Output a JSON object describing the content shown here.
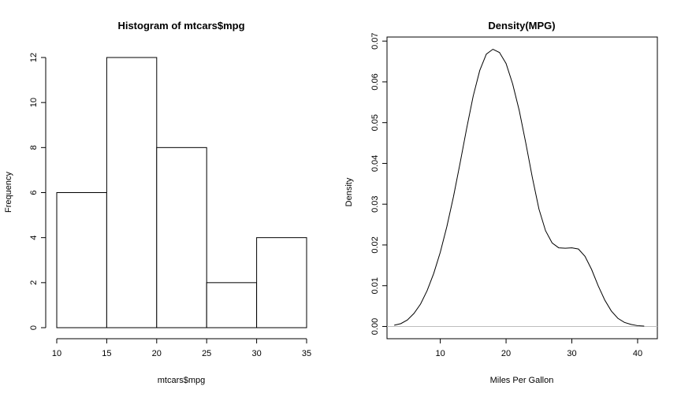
{
  "chart_data": [
    {
      "type": "bar",
      "title": "Histogram of mtcars$mpg",
      "xlabel": "mtcars$mpg",
      "ylabel": "Frequency",
      "bins": [
        {
          "from": 10,
          "to": 15,
          "count": 6
        },
        {
          "from": 15,
          "to": 20,
          "count": 12
        },
        {
          "from": 20,
          "to": 25,
          "count": 8
        },
        {
          "from": 25,
          "to": 30,
          "count": 2
        },
        {
          "from": 30,
          "to": 35,
          "count": 4
        }
      ],
      "xlim": [
        10,
        35
      ],
      "ylim": [
        0,
        12
      ],
      "x_ticks": [
        10,
        15,
        20,
        25,
        30,
        35
      ],
      "y_ticks": [
        0,
        2,
        4,
        6,
        8,
        10,
        12
      ],
      "grid": false
    },
    {
      "type": "line",
      "title": "Density(MPG)",
      "xlabel": "Miles Per Gallon",
      "ylabel": "Density",
      "xlim": [
        1.9,
        43.0
      ],
      "ylim": [
        -0.003,
        0.071
      ],
      "x_ticks": [
        10,
        20,
        30,
        40
      ],
      "y_ticks": [
        0.0,
        0.01,
        0.02,
        0.03,
        0.04,
        0.05,
        0.06,
        0.07
      ],
      "y_tick_labels": [
        "0.00",
        "0.01",
        "0.02",
        "0.03",
        "0.04",
        "0.05",
        "0.06",
        "0.07"
      ],
      "box": true,
      "zero_line": true,
      "series": [
        {
          "x": [
            3.0,
            4.0,
            5.0,
            6.0,
            7.0,
            8.0,
            9.0,
            10.0,
            11.0,
            12.0,
            13.0,
            14.0,
            15.0,
            16.0,
            17.0,
            18.0,
            19.0,
            20.0,
            21.0,
            22.0,
            23.0,
            24.0,
            25.0,
            26.0,
            27.0,
            28.0,
            29.0,
            30.0,
            31.0,
            32.0,
            33.0,
            34.0,
            35.0,
            36.0,
            37.0,
            38.0,
            39.0,
            40.0,
            41.0
          ],
          "y": [
            0.0003,
            0.0007,
            0.0016,
            0.0032,
            0.0055,
            0.0088,
            0.013,
            0.0182,
            0.0245,
            0.0318,
            0.04,
            0.0485,
            0.0565,
            0.0628,
            0.0668,
            0.068,
            0.0672,
            0.0645,
            0.0595,
            0.053,
            0.045,
            0.0365,
            0.0288,
            0.0235,
            0.0205,
            0.0193,
            0.0192,
            0.0193,
            0.019,
            0.0172,
            0.014,
            0.01,
            0.0065,
            0.0038,
            0.002,
            0.001,
            0.0005,
            0.0002,
            0.0001
          ]
        }
      ]
    }
  ]
}
